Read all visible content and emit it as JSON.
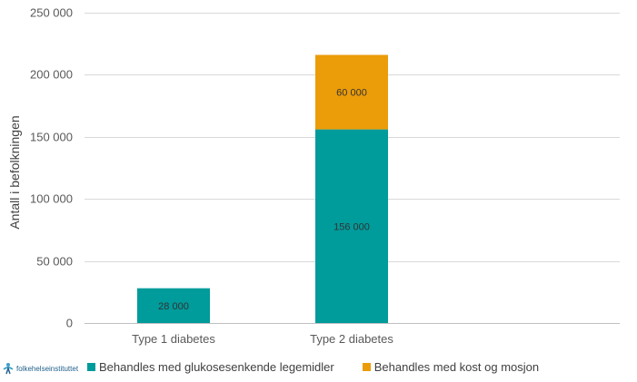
{
  "chart_data": {
    "type": "bar",
    "stacked": true,
    "categories": [
      "Type 1 diabetes",
      "Type 2 diabetes"
    ],
    "series": [
      {
        "name": "Behandles med glukosesenkende legemidler",
        "values": [
          28000,
          156000
        ],
        "labels": [
          "28 000",
          "156 000"
        ],
        "color": "#009b9b"
      },
      {
        "name": "Behandles med kost og mosjon",
        "values": [
          0,
          60000
        ],
        "labels": [
          "",
          "60 000"
        ],
        "color": "#eb9c09"
      }
    ],
    "ylabel": "Antall i befolkningen",
    "ylim": [
      0,
      250000
    ],
    "yticks": [
      0,
      50000,
      100000,
      150000,
      200000,
      250000
    ],
    "ytick_labels": [
      "0",
      "50 000",
      "100 000",
      "150 000",
      "200 000",
      "250 000"
    ],
    "grid": true,
    "legend_position": "bottom"
  },
  "logo": {
    "text": "folkehelseinstituttet",
    "icon": "fhi-logo-icon"
  }
}
